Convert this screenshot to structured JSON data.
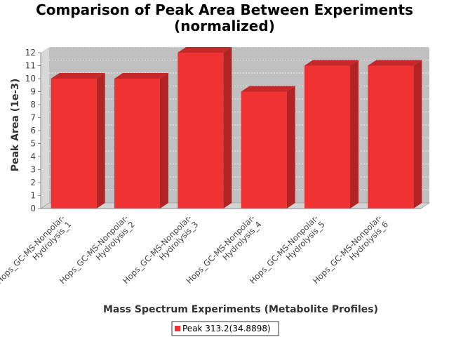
{
  "chart_data": {
    "type": "bar",
    "title_lines": [
      "Comparison of Peak Area Between Experiments",
      "(normalized)"
    ],
    "xlabel": "Mass Spectrum Experiments (Metabolite Profiles)",
    "ylabel": "Peak Area (1e-3)",
    "categories": [
      [
        "Hops_GC-MS-Nonpolar-",
        "Hydrolysis_1"
      ],
      [
        "Hops_GC-MS-Nonpolar-",
        "Hydrolysis_2"
      ],
      [
        "Hops_GC-MS-Nonpolar-",
        "Hydrolysis_3"
      ],
      [
        "Hops_GC-MS-Nonpolar-",
        "Hydrolysis_4"
      ],
      [
        "Hops_GC-MS-Nonpolar-",
        "Hydrolysis_5"
      ],
      [
        "Hops_GC-MS-Nonpolar-",
        "Hydrolysis_6"
      ]
    ],
    "series": [
      {
        "name": "Peak 313.2(34.8898)",
        "values": [
          10,
          10,
          12,
          9,
          11,
          11
        ]
      }
    ],
    "ylim": [
      0,
      12.4
    ],
    "yticks": [
      0,
      1,
      2,
      3,
      4,
      5,
      6,
      7,
      8,
      9,
      10,
      11,
      12
    ],
    "grid": true,
    "legend_position": "bottom-center",
    "colors": {
      "bar_front": "#f03232",
      "bar_top": "#c42828",
      "bar_side": "#b02424",
      "plot_back": "#c0c0c0",
      "plot_floor": "#d4d4d4",
      "plot_left_wall": "#d8d8d8",
      "grid": "#ffffff"
    }
  }
}
